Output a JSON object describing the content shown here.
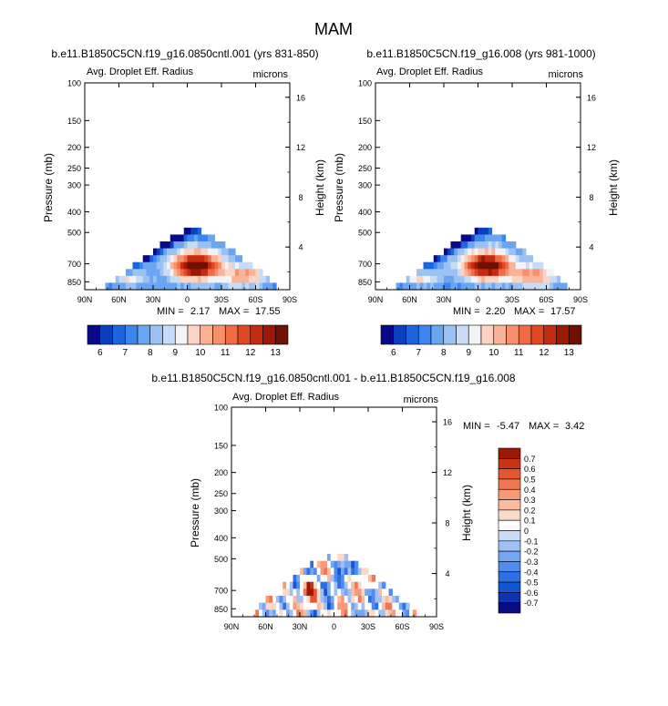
{
  "figure_title": "MAM",
  "chart_data": [
    {
      "type": "heatmap",
      "title": "b.e11.B1850C5CN.f19_g16.0850cntl.001 (yrs 831-850)",
      "subtitle_left": "Avg. Droplet Eff. Radius",
      "subtitle_right": "microns",
      "ylabel": "Pressure (mb)",
      "y2label": "Height (km)",
      "x_ticks": [
        "90N",
        "60N",
        "30N",
        "0",
        "30S",
        "60S",
        "90S"
      ],
      "x_values": [
        90,
        60,
        30,
        0,
        -30,
        -60,
        -90
      ],
      "p_ticks": [
        100,
        150,
        200,
        250,
        300,
        400,
        500,
        700,
        850
      ],
      "h_ticks": [
        16,
        12,
        8,
        4
      ],
      "stats": {
        "min_label": "MIN =",
        "min": "2.17",
        "max_label": "MAX =",
        "max": "17.55"
      },
      "colorbar_ticks": [
        "6",
        "7",
        "8",
        "9",
        "10",
        "11",
        "12",
        "13"
      ],
      "field": {
        "peak_lat": -5,
        "peak_value": 14.0,
        "cloud_top_mb_equator": 450,
        "range": [
          2.17,
          17.55
        ]
      }
    },
    {
      "type": "heatmap",
      "title": "b.e11.B1850C5CN.f19_g16.008 (yrs 981-1000)",
      "subtitle_left": "Avg. Droplet Eff. Radius",
      "subtitle_right": "microns",
      "ylabel": "Pressure (mb)",
      "y2label": "Height (km)",
      "x_ticks": [
        "90N",
        "60N",
        "30N",
        "0",
        "30S",
        "60S",
        "90S"
      ],
      "x_values": [
        90,
        60,
        30,
        0,
        -30,
        -60,
        -90
      ],
      "p_ticks": [
        100,
        150,
        200,
        250,
        300,
        400,
        500,
        700,
        850
      ],
      "h_ticks": [
        16,
        12,
        8,
        4
      ],
      "stats": {
        "min_label": "MIN =",
        "min": "2.20",
        "max_label": "MAX =",
        "max": "17.57"
      },
      "colorbar_ticks": [
        "6",
        "7",
        "8",
        "9",
        "10",
        "11",
        "12",
        "13"
      ],
      "field": {
        "peak_lat": -5,
        "peak_value": 14.0,
        "cloud_top_mb_equator": 450,
        "range": [
          2.2,
          17.57
        ]
      }
    },
    {
      "type": "heatmap",
      "title": "b.e11.B1850C5CN.f19_g16.0850cntl.001 - b.e11.B1850C5CN.f19_g16.008",
      "subtitle_left": "Avg. Droplet Eff. Radius",
      "subtitle_right": "microns",
      "ylabel": "Pressure (mb)",
      "y2label": "Height (km)",
      "x_ticks": [
        "90N",
        "60N",
        "30N",
        "0",
        "30S",
        "60S",
        "90S"
      ],
      "x_values": [
        90,
        60,
        30,
        0,
        -30,
        -60,
        -90
      ],
      "p_ticks": [
        100,
        150,
        200,
        250,
        300,
        400,
        500,
        700,
        850
      ],
      "h_ticks": [
        16,
        12,
        8,
        4
      ],
      "stats": {
        "min_label": "MIN =",
        "min": "-5.47",
        "max_label": "MAX =",
        "max": "3.42"
      },
      "colorbar_ticks": [
        "0.7",
        "0.6",
        "0.5",
        "0.4",
        "0.3",
        "0.2",
        "0.1",
        "0",
        "-0.1",
        "-0.2",
        "-0.3",
        "-0.4",
        "-0.5",
        "-0.6",
        "-0.7"
      ],
      "field": {
        "range": [
          -5.47,
          3.42
        ],
        "cloud_top_mb_equator": 450
      }
    }
  ],
  "palettes": {
    "absolute": [
      "#08088a",
      "#0b3fbf",
      "#1c66dd",
      "#3d85ee",
      "#6aa5f2",
      "#9cc2f3",
      "#c8dcf6",
      "#f3f3f7",
      "#fbd5c4",
      "#f9b498",
      "#f7916d",
      "#f26a44",
      "#e24623",
      "#c52b10",
      "#9a1a06",
      "#700f02"
    ],
    "diff": [
      "#0a0a82",
      "#0c34b3",
      "#1554d2",
      "#2d70e6",
      "#4f8bef",
      "#76a5f2",
      "#a0c0f4",
      "#c9dbf7",
      "#ffffff",
      "#fbd9c8",
      "#f9bba2",
      "#f69a7a",
      "#f17752",
      "#e5552f",
      "#c83512",
      "#9c1a04"
    ]
  }
}
